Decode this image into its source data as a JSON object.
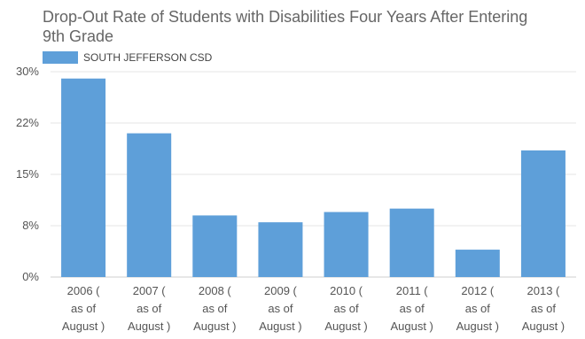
{
  "chart_data": {
    "type": "bar",
    "title": "Drop-Out Rate of Students with Disabilities Four Years After Entering 9th Grade",
    "categories": [
      "2006 ( as of August )",
      "2007 ( as of August )",
      "2008 ( as of August )",
      "2009 ( as of August )",
      "2010 ( as of August )",
      "2011 ( as of August )",
      "2012 ( as of August )",
      "2013 ( as of August )"
    ],
    "series": [
      {
        "name": "SOUTH JEFFERSON CSD",
        "values": [
          29,
          21,
          9,
          8,
          9.5,
          10,
          4,
          18.5
        ],
        "color": "#5e9fd9"
      }
    ],
    "yticks": [
      {
        "value": 0,
        "label": "0%"
      },
      {
        "value": 7.5,
        "label": "8%"
      },
      {
        "value": 15,
        "label": "15%"
      },
      {
        "value": 22.5,
        "label": "22%"
      },
      {
        "value": 30,
        "label": "30%"
      }
    ],
    "ylim": [
      0,
      30
    ],
    "grid": true,
    "legend_position": "top-left",
    "xlabel": "",
    "ylabel": ""
  }
}
